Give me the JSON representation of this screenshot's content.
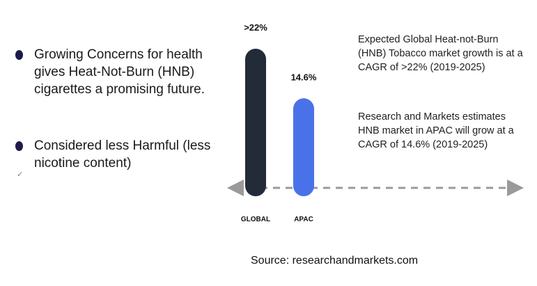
{
  "bullets": [
    {
      "text": "Growing Concerns for health gives Heat-Not-Burn (HNB) cigarettes a promising future."
    },
    {
      "text": "Considered less Harmful (less nicotine content)"
    }
  ],
  "check_mark": "✓",
  "notes": [
    "Expected Global Heat-not-Burn (HNB) Tobacco market growth is at a CAGR of >22% (2019-2025)",
    "Research and Markets estimates HNB market in APAC will grow at a CAGR of 14.6% (2019-2025)"
  ],
  "source": "Source: researchandmarkets.com",
  "chart_data": {
    "type": "bar",
    "categories": [
      "GLOBAL",
      "APAC"
    ],
    "values": [
      22,
      14.6
    ],
    "value_labels": [
      ">22%",
      "14.6%"
    ],
    "colors": [
      "#232b38",
      "#4a72e8"
    ],
    "baseline_color": "#9a9a9a",
    "grid": false
  }
}
